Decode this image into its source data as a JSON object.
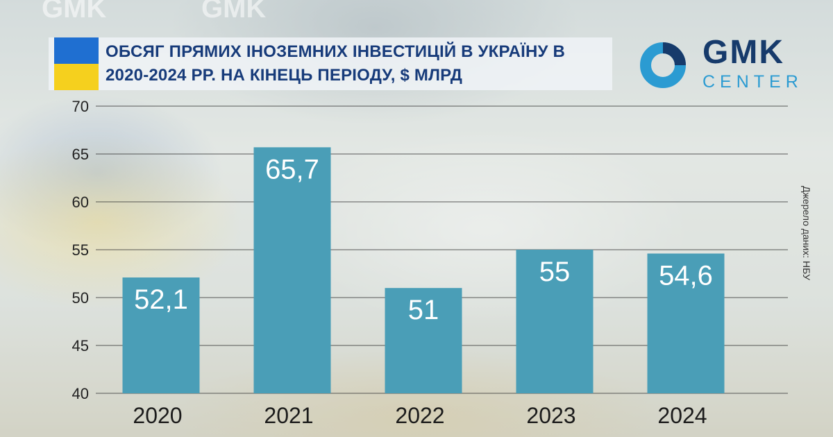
{
  "title": "ОБСЯГ ПРЯМИХ ІНОЗЕМНИХ ІНВЕСТИЦІЙ В УКРАЇНУ В 2020-2024 РР. НА КІНЕЦЬ ПЕРІОДУ, $ МЛРД",
  "logo": {
    "main": "GMK",
    "sub": "CENTER"
  },
  "source": "Джерело даних: НБУ",
  "colors": {
    "bar": "#4a9eb7",
    "title": "#173b7a",
    "flag_blue": "#1f6fd1",
    "flag_yellow": "#f5d01e",
    "grid": "#333333"
  },
  "chart_data": {
    "type": "bar",
    "categories": [
      "2020",
      "2021",
      "2022",
      "2023",
      "2024"
    ],
    "values": [
      52.1,
      65.7,
      51,
      55,
      54.6
    ],
    "data_labels": [
      "52,1",
      "65,7",
      "51",
      "55",
      "54,6"
    ],
    "y_ticks": [
      "40",
      "45",
      "50",
      "55",
      "60",
      "65",
      "70"
    ],
    "ylim": [
      40,
      70
    ],
    "grid": true,
    "title": "ОБСЯГ ПРЯМИХ ІНОЗЕМНИХ ІНВЕСТИЦІЙ В УКРАЇНУ В 2020-2024 РР. НА КІНЕЦЬ ПЕРІОДУ, $ МЛРД"
  }
}
